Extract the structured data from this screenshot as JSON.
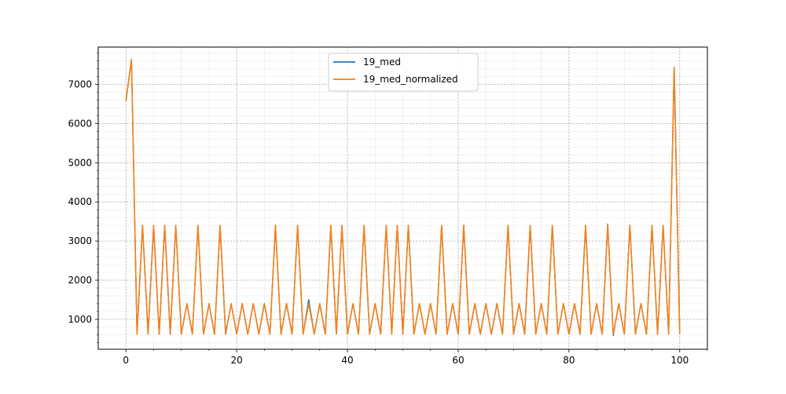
{
  "chart_data": {
    "type": "line",
    "title": "",
    "xlabel": "",
    "ylabel": "",
    "xlim": [
      -5,
      105
    ],
    "ylim": [
      235,
      7955
    ],
    "x_ticks": [
      0,
      20,
      40,
      60,
      80,
      100
    ],
    "y_ticks": [
      1000,
      2000,
      3000,
      4000,
      5000,
      6000,
      7000
    ],
    "x_tick_labels": [
      "0",
      "20",
      "40",
      "60",
      "80",
      "100"
    ],
    "y_tick_labels": [
      "1000",
      "2000",
      "3000",
      "4000",
      "5000",
      "6000",
      "7000"
    ],
    "grid": true,
    "minor_grid": true,
    "legend_position": "top-center",
    "colors": {
      "19_med": "#1f77b4",
      "19_med_normalized": "#ff7f0e"
    },
    "series": [
      {
        "name": "19_med",
        "values": [
          6580,
          7640,
          620,
          3400,
          620,
          3400,
          620,
          3400,
          620,
          3400,
          620,
          1400,
          620,
          3400,
          620,
          1400,
          620,
          3400,
          620,
          1400,
          620,
          1400,
          620,
          1400,
          620,
          1400,
          620,
          3400,
          620,
          1400,
          620,
          3400,
          620,
          1500,
          620,
          1400,
          620,
          3400,
          620,
          3400,
          620,
          1400,
          620,
          3400,
          620,
          1400,
          620,
          3400,
          620,
          3400,
          620,
          3400,
          620,
          1400,
          620,
          1400,
          620,
          3400,
          620,
          1400,
          620,
          3400,
          620,
          1400,
          620,
          1400,
          620,
          1400,
          620,
          3400,
          620,
          1400,
          620,
          3400,
          620,
          1400,
          620,
          3400,
          620,
          1400,
          620,
          1400,
          620,
          3400,
          620,
          1400,
          620,
          3430,
          590,
          1400,
          620,
          3400,
          620,
          1400,
          620,
          3400,
          620,
          3400,
          620,
          7440,
          620
        ]
      },
      {
        "name": "19_med_normalized",
        "values": [
          6580,
          7640,
          620,
          3400,
          620,
          3400,
          620,
          3400,
          620,
          3400,
          620,
          1400,
          620,
          3400,
          620,
          1400,
          620,
          3400,
          620,
          1400,
          620,
          1400,
          620,
          1400,
          620,
          1400,
          620,
          3400,
          620,
          1400,
          620,
          3400,
          620,
          1400,
          620,
          1400,
          620,
          3400,
          620,
          3400,
          620,
          1400,
          620,
          3400,
          620,
          1400,
          620,
          3400,
          620,
          3400,
          620,
          3400,
          620,
          1400,
          620,
          1400,
          620,
          3400,
          620,
          1400,
          620,
          3400,
          620,
          1400,
          620,
          1400,
          620,
          1400,
          620,
          3400,
          620,
          1400,
          620,
          3400,
          620,
          1400,
          620,
          3400,
          620,
          1400,
          620,
          1400,
          620,
          3400,
          620,
          1400,
          620,
          3400,
          620,
          1400,
          620,
          3400,
          620,
          1400,
          620,
          3400,
          620,
          3400,
          620,
          7440,
          620
        ]
      }
    ]
  }
}
